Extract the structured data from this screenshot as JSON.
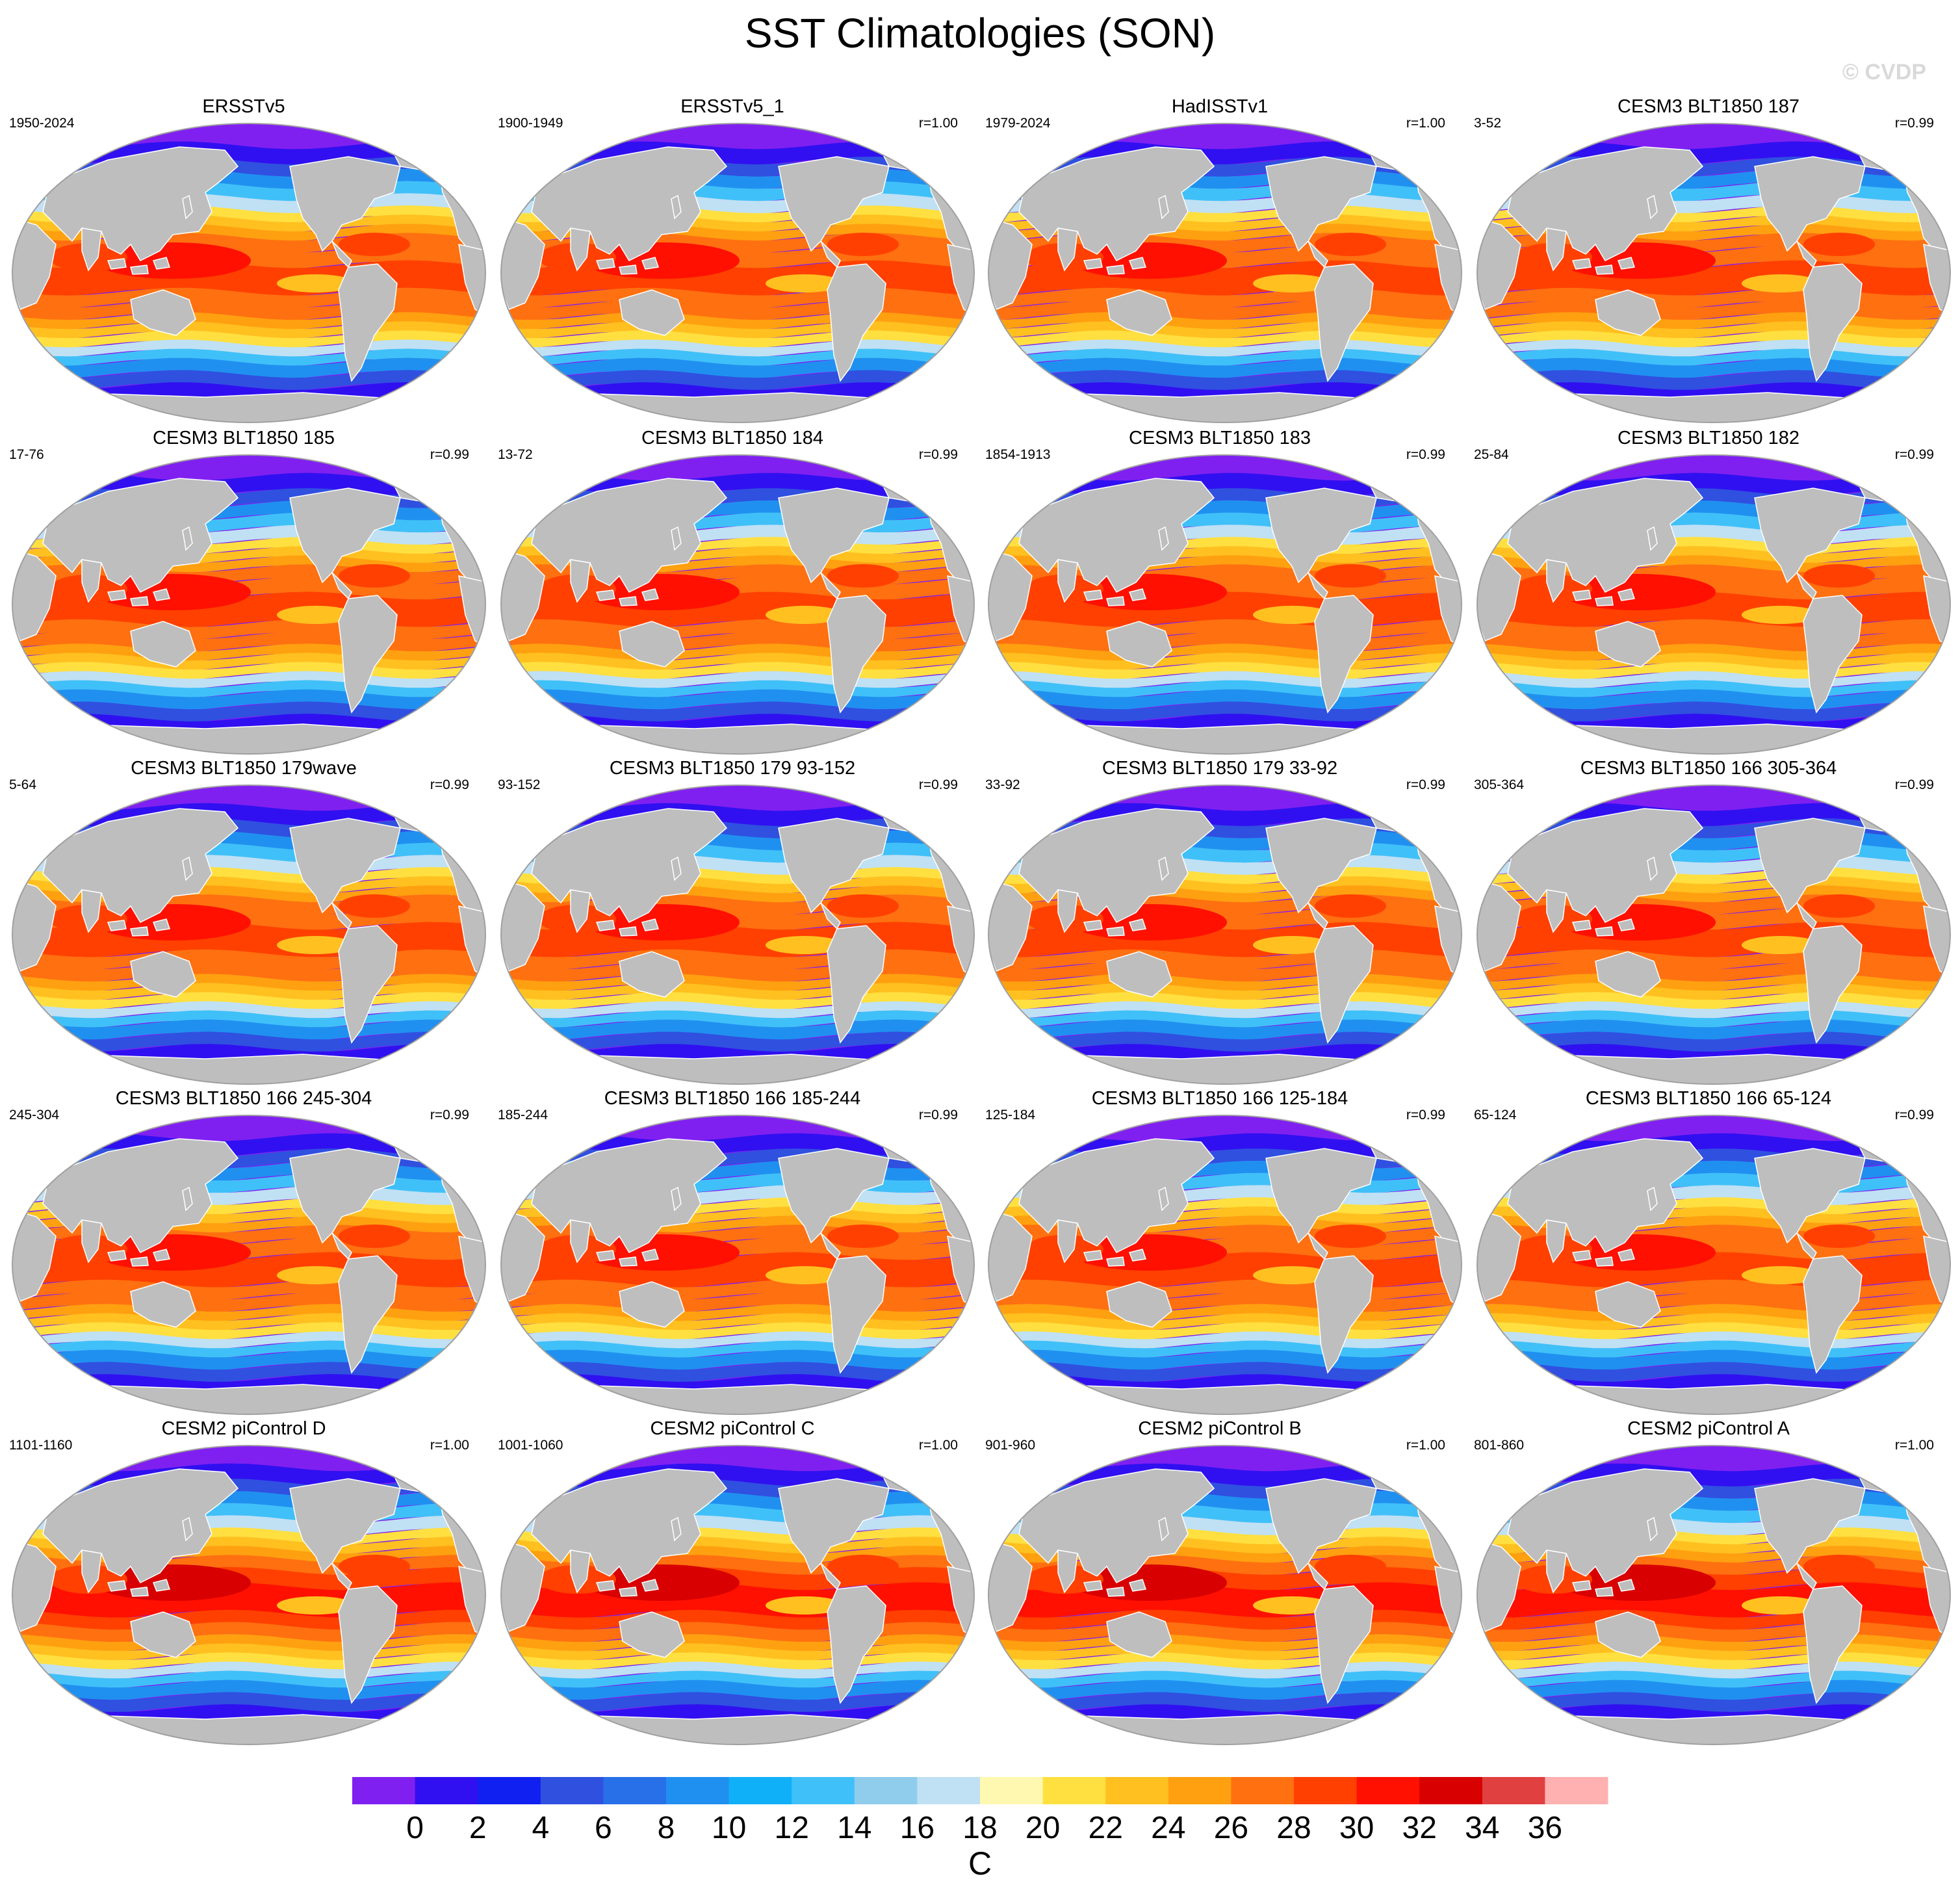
{
  "title": "SST Climatologies (SON)",
  "watermark": "© CVDP",
  "panels": [
    {
      "title": "ERSSTv5",
      "period": "1950-2024",
      "corr": "",
      "style": "obs"
    },
    {
      "title": "ERSSTv5_1",
      "period": "1900-1949",
      "corr": "r=1.00",
      "style": "obs"
    },
    {
      "title": "HadISSTv1",
      "period": "1979-2024",
      "corr": "r=1.00",
      "style": "obs"
    },
    {
      "title": "CESM3 BLT1850 187",
      "period": "3-52",
      "corr": "r=0.99",
      "style": "cesm3"
    },
    {
      "title": "CESM3 BLT1850 185",
      "period": "17-76",
      "corr": "r=0.99",
      "style": "cesm3"
    },
    {
      "title": "CESM3 BLT1850 184",
      "period": "13-72",
      "corr": "r=0.99",
      "style": "cesm3"
    },
    {
      "title": "CESM3 BLT1850 183",
      "period": "1854-1913",
      "corr": "r=0.99",
      "style": "cesm3"
    },
    {
      "title": "CESM3 BLT1850 182",
      "period": "25-84",
      "corr": "r=0.99",
      "style": "cesm3"
    },
    {
      "title": "CESM3 BLT1850 179wave",
      "period": "5-64",
      "corr": "r=0.99",
      "style": "cesm3"
    },
    {
      "title": "CESM3 BLT1850 179 93-152",
      "period": "93-152",
      "corr": "r=0.99",
      "style": "cesm3"
    },
    {
      "title": "CESM3 BLT1850 179 33-92",
      "period": "33-92",
      "corr": "r=0.99",
      "style": "cesm3"
    },
    {
      "title": "CESM3 BLT1850 166 305-364",
      "period": "305-364",
      "corr": "r=0.99",
      "style": "cesm3"
    },
    {
      "title": "CESM3 BLT1850 166 245-304",
      "period": "245-304",
      "corr": "r=0.99",
      "style": "cesm3"
    },
    {
      "title": "CESM3 BLT1850 166 185-244",
      "period": "185-244",
      "corr": "r=0.99",
      "style": "cesm3"
    },
    {
      "title": "CESM3 BLT1850 166 125-184",
      "period": "125-184",
      "corr": "r=0.99",
      "style": "cesm3"
    },
    {
      "title": "CESM3 BLT1850 166 65-124",
      "period": "65-124",
      "corr": "r=0.99",
      "style": "cesm3"
    },
    {
      "title": "CESM2 piControl D",
      "period": "1101-1160",
      "corr": "r=1.00",
      "style": "cesm2"
    },
    {
      "title": "CESM2 piControl C",
      "period": "1001-1060",
      "corr": "r=1.00",
      "style": "cesm2"
    },
    {
      "title": "CESM2 piControl B",
      "period": "901-960",
      "corr": "r=1.00",
      "style": "cesm2"
    },
    {
      "title": "CESM2 piControl A",
      "period": "801-860",
      "corr": "r=1.00",
      "style": "cesm2"
    }
  ],
  "colorbar": {
    "labels": [
      "0",
      "2",
      "4",
      "6",
      "8",
      "10",
      "12",
      "14",
      "16",
      "18",
      "20",
      "22",
      "24",
      "26",
      "28",
      "30",
      "32",
      "34",
      "36"
    ],
    "colors": [
      "#8020f0",
      "#3010f0",
      "#1020f0",
      "#3050e0",
      "#2870e8",
      "#2090f0",
      "#10b0f8",
      "#40c0f8",
      "#90ccec",
      "#c0e0f4",
      "#fff8b0",
      "#ffe040",
      "#ffc020",
      "#ffa010",
      "#ff7010",
      "#ff4000",
      "#ff1000",
      "#d80000",
      "#e04040",
      "#ffb0b0"
    ],
    "unit": "C"
  },
  "map_colors": {
    "land": "#bebebe",
    "ocean_edge": "#a0a0a0"
  }
}
